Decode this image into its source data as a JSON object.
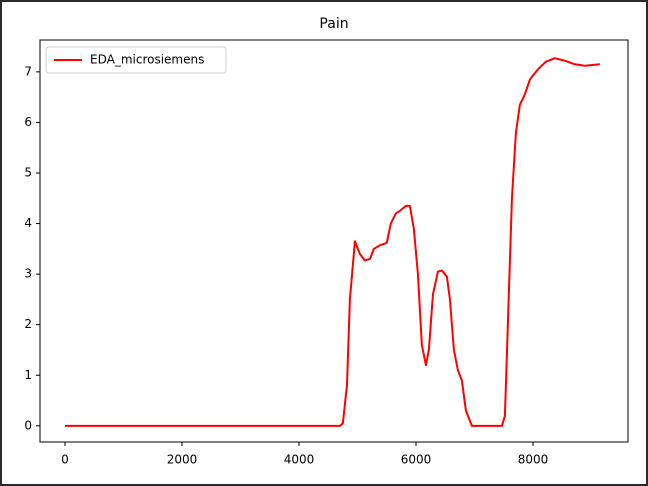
{
  "chart_data": {
    "type": "line",
    "title": "Pain",
    "x": [
      0,
      4700,
      4750,
      4820,
      4870,
      4956,
      5040,
      5127,
      5212,
      5280,
      5383,
      5500,
      5570,
      5655,
      5725,
      5827,
      5895,
      5963,
      6033,
      6100,
      6170,
      6220,
      6290,
      6375,
      6443,
      6528,
      6580,
      6648,
      6716,
      6784,
      6853,
      6956,
      7470,
      7520,
      7570,
      7640,
      7708,
      7776,
      7860,
      7947,
      8084,
      8220,
      8374,
      8545,
      8716,
      8887,
      9143
    ],
    "series": [
      {
        "name": "EDA_microsiemens",
        "color": "#ff0000",
        "values": [
          0,
          0,
          0.05,
          0.8,
          2.5,
          3.65,
          3.4,
          3.27,
          3.3,
          3.5,
          3.57,
          3.62,
          4.0,
          4.2,
          4.25,
          4.35,
          4.35,
          3.9,
          3.0,
          1.6,
          1.2,
          1.5,
          2.6,
          3.05,
          3.07,
          2.95,
          2.5,
          1.5,
          1.1,
          0.9,
          0.3,
          0,
          0,
          0.2,
          2.0,
          4.5,
          5.8,
          6.35,
          6.55,
          6.85,
          7.05,
          7.2,
          7.27,
          7.22,
          7.15,
          7.12,
          7.15
        ]
      }
    ],
    "xlim": [
      -427,
      9624
    ],
    "ylim": [
      -0.32,
      7.63
    ],
    "xticks": [
      0,
      2000,
      4000,
      6000,
      8000
    ],
    "yticks": [
      0,
      1,
      2,
      3,
      4,
      5,
      6,
      7
    ],
    "legend": "upper left"
  }
}
